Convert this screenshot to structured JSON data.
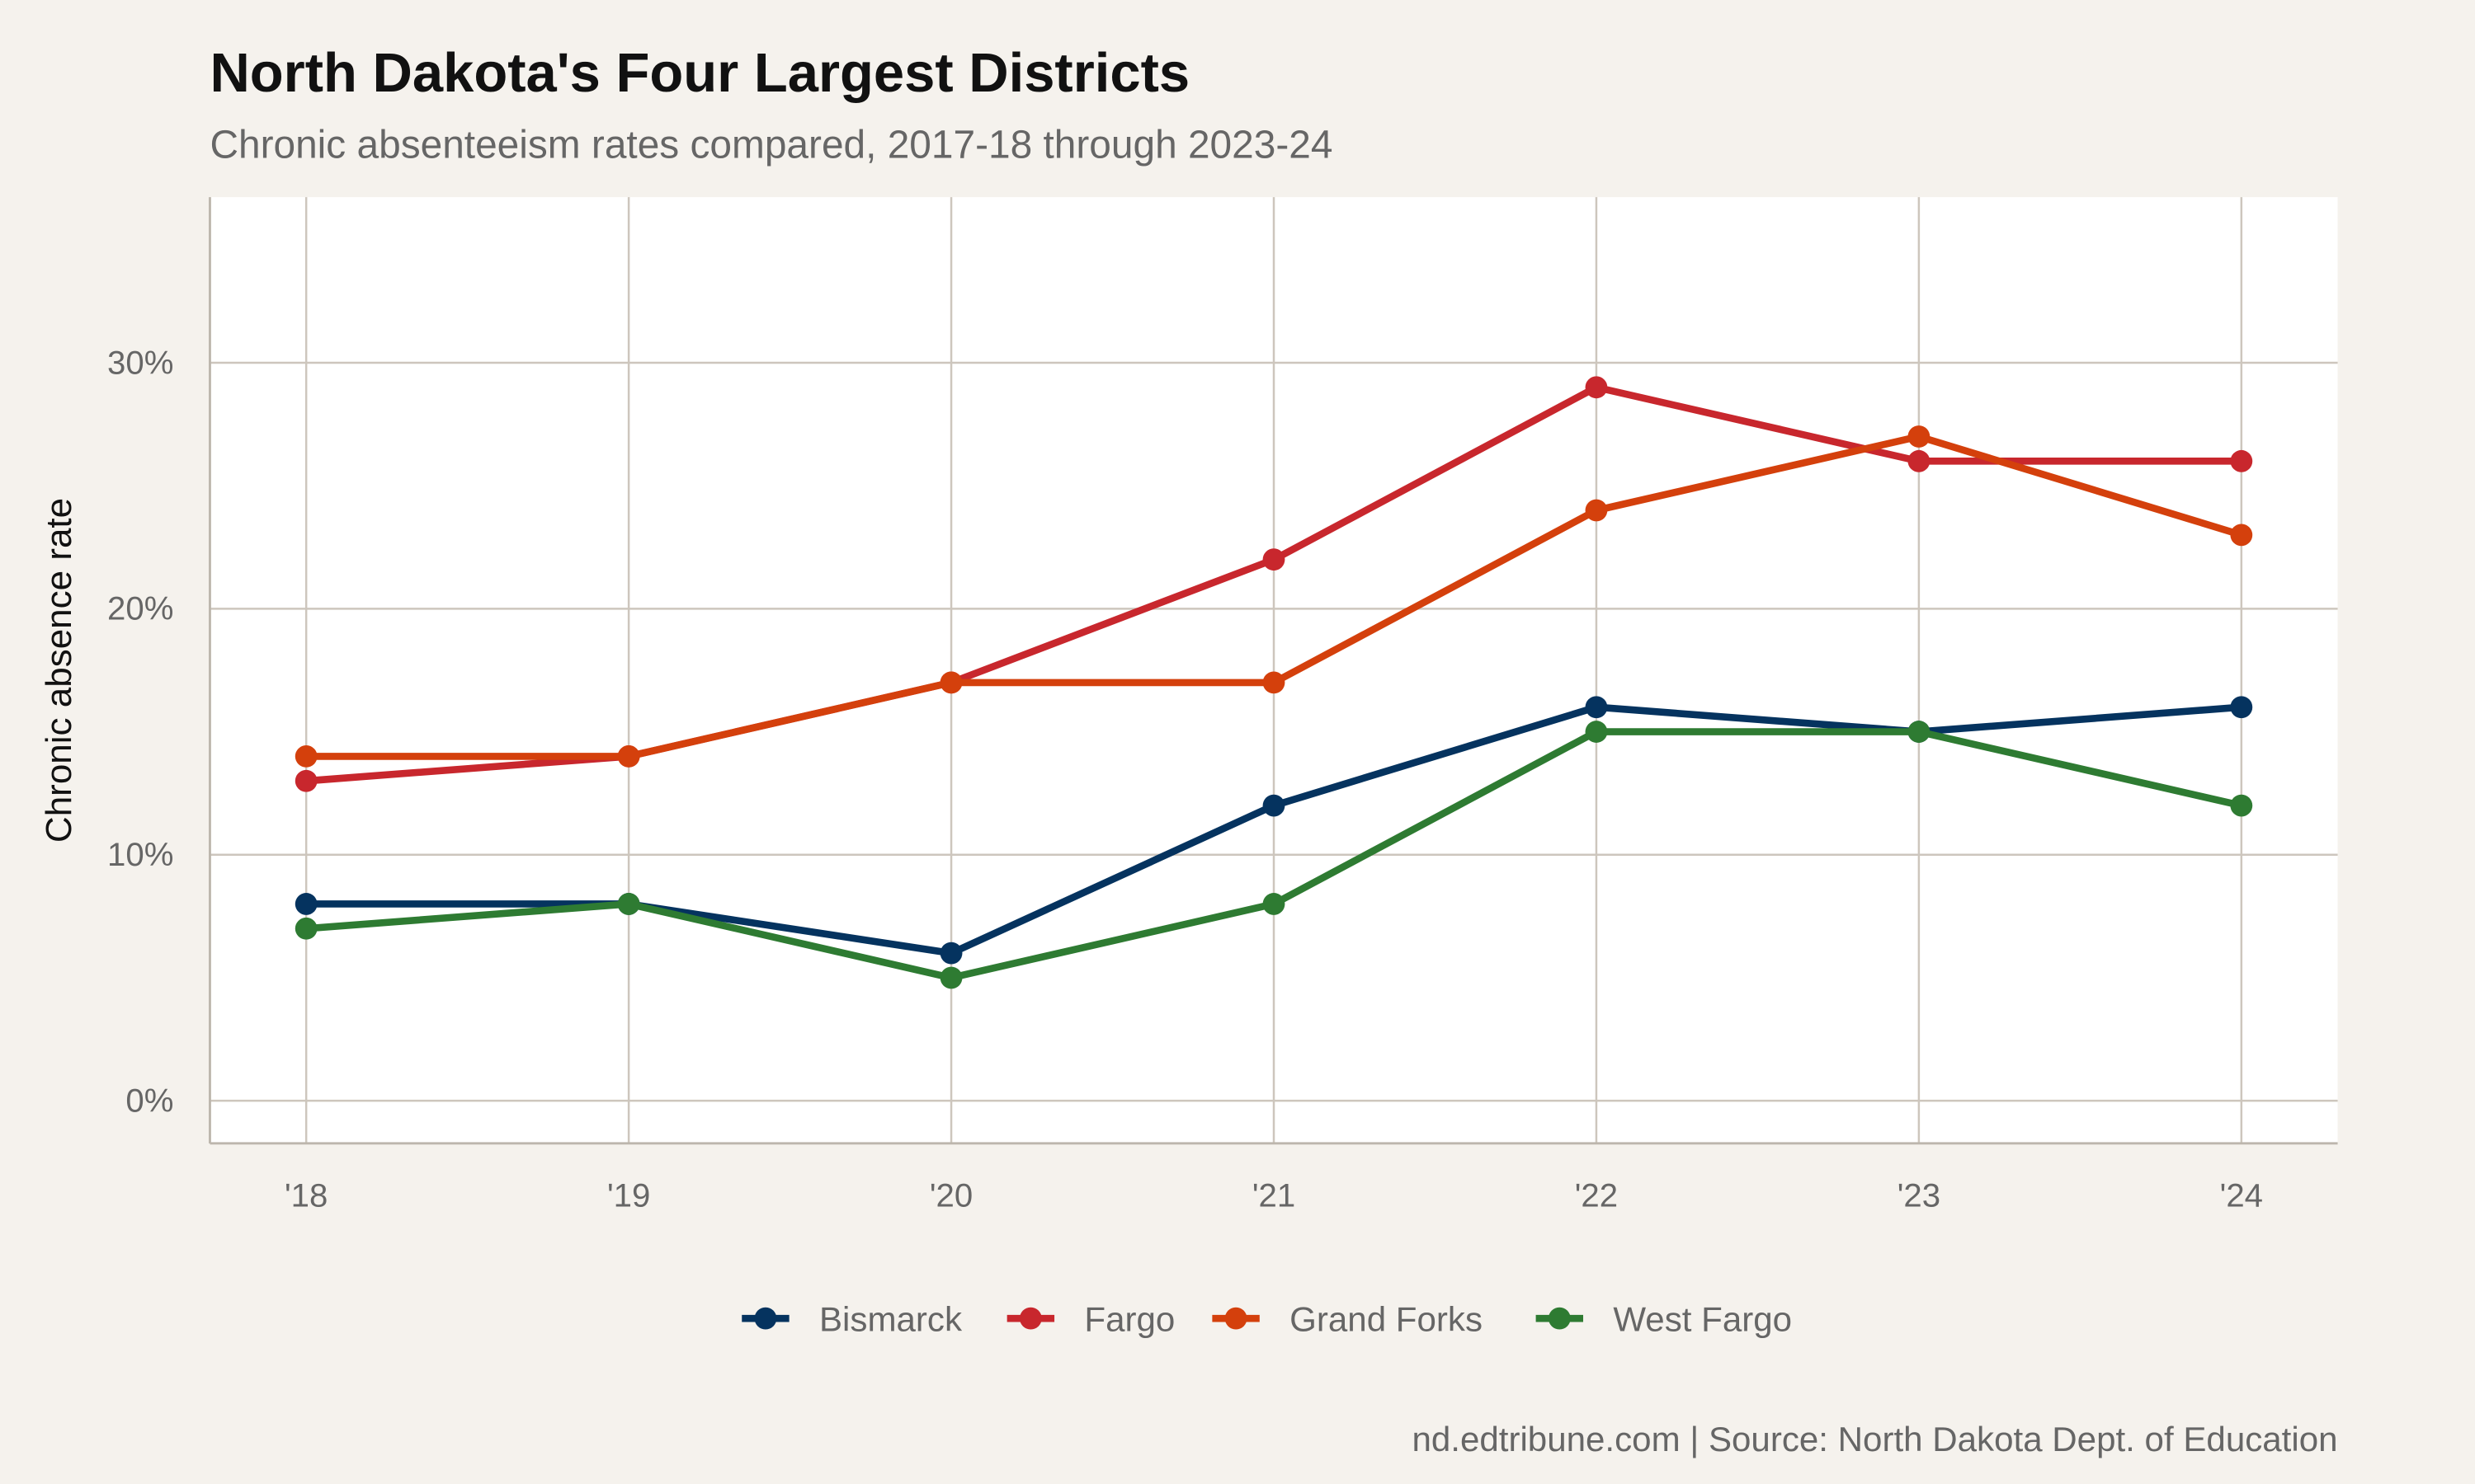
{
  "chart_data": {
    "type": "line",
    "title": "North Dakota's Four Largest Districts",
    "subtitle": "Chronic absenteeism rates compared, 2017-18 through 2023-24",
    "xlabel": "",
    "ylabel": "Chronic absence rate",
    "categories": [
      "'18",
      "'19",
      "'20",
      "'21",
      "'22",
      "'23",
      "'24"
    ],
    "yticks": [
      0,
      10,
      20,
      30
    ],
    "ytick_labels": [
      "0%",
      "10%",
      "20%",
      "30%"
    ],
    "ylim": [
      -1.7,
      36.7
    ],
    "grid": true,
    "legend_position": "bottom",
    "series": [
      {
        "name": "Bismarck",
        "color": "#05335f",
        "values": [
          8,
          8,
          6,
          12,
          16,
          15,
          16
        ]
      },
      {
        "name": "Fargo",
        "color": "#c8272d",
        "values": [
          13,
          14,
          17,
          22,
          29,
          26,
          26
        ]
      },
      {
        "name": "Grand Forks",
        "color": "#d4400c",
        "values": [
          14,
          14,
          17,
          17,
          24,
          27,
          23
        ]
      },
      {
        "name": "West Fargo",
        "color": "#2e7b32",
        "values": [
          7,
          8,
          5,
          8,
          15,
          15,
          12
        ]
      }
    ],
    "caption": "nd.edtribune.com | Source: North Dakota Dept. of Education"
  }
}
